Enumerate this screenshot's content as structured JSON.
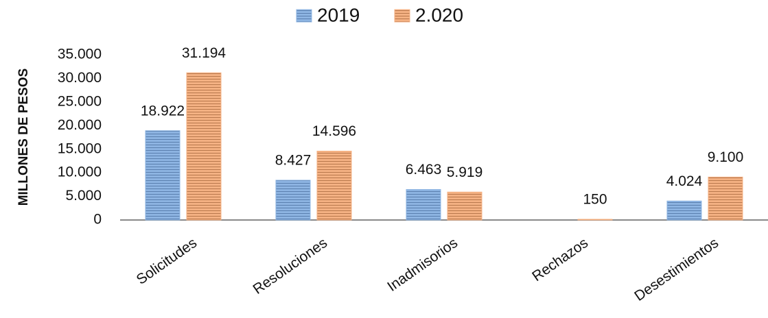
{
  "chart_data": {
    "type": "bar",
    "y_axis_label": "MILLONES DE PESOS",
    "categories": [
      "Solicitudes",
      "Resoluciones",
      "Inadmisorios",
      "Rechazos",
      "Desestimientos"
    ],
    "series": [
      {
        "name": "2019",
        "color": "#8db4e2",
        "values": [
          18922,
          8427,
          6463,
          null,
          4024
        ],
        "value_labels": [
          "18.922",
          "8.427",
          "6.463",
          null,
          "4.024"
        ]
      },
      {
        "name": "2.020",
        "color": "#f4b183",
        "values": [
          31194,
          14596,
          5919,
          150,
          9100
        ],
        "value_labels": [
          "31.194",
          "14.596",
          "5.919",
          "150",
          "9.100"
        ]
      }
    ],
    "ylim": [
      0,
      35000
    ],
    "yticks": [
      0,
      {
        "value": 5000,
        "label": "5.000"
      },
      {
        "value": 10000,
        "label": "10.000"
      },
      {
        "value": 15000,
        "label": "15.000"
      },
      {
        "value": 20000,
        "label": "20.000"
      },
      {
        "value": 25000,
        "label": "25.000"
      },
      {
        "value": 30000,
        "label": "30.000"
      },
      {
        "value": 35000,
        "label": "35.000"
      }
    ],
    "legend": "top"
  }
}
